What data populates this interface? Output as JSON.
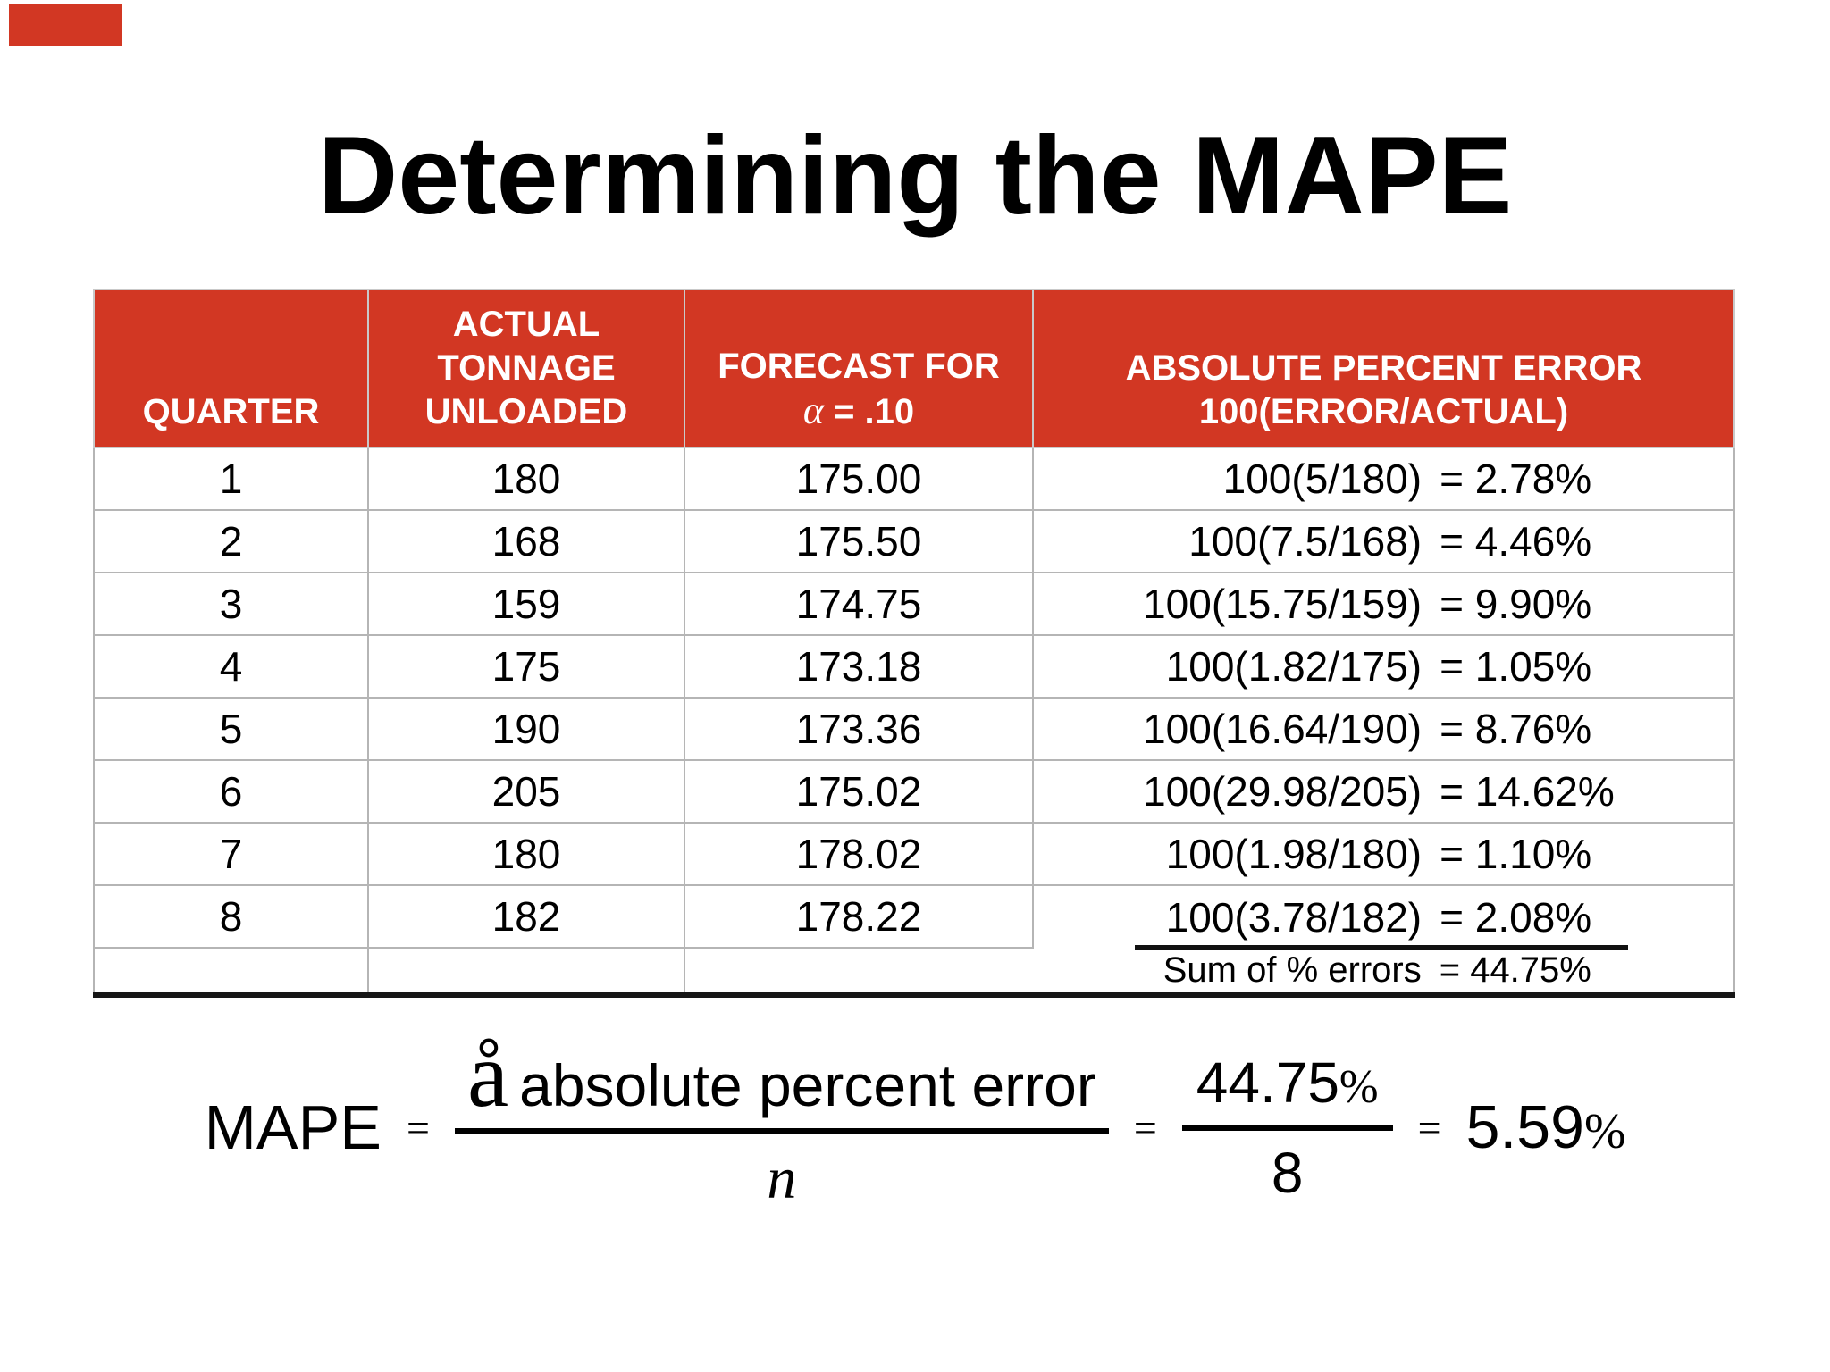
{
  "colors": {
    "accent_red": "#d23723",
    "table_border_gray": "#b5b5b5",
    "rule_black": "#161616"
  },
  "title": "Determining the MAPE",
  "table": {
    "col1_header": "QUARTER",
    "col2_header_lines": [
      "ACTUAL",
      "TONNAGE",
      "UNLOADED"
    ],
    "col3_header_line1": "FORECAST FOR",
    "col3_alpha": "α",
    "col3_header_line2_rest": "= .10",
    "col4_header_lines": [
      "ABSOLUTE PERCENT ERROR",
      "100(ERROR/ACTUAL)"
    ],
    "rows": [
      {
        "quarter": "1",
        "actual": "180",
        "forecast": "175.00",
        "ape_expr": "100(5/180)",
        "ape_value": "= 2.78%"
      },
      {
        "quarter": "2",
        "actual": "168",
        "forecast": "175.50",
        "ape_expr": "100(7.5/168)",
        "ape_value": "= 4.46%"
      },
      {
        "quarter": "3",
        "actual": "159",
        "forecast": "174.75",
        "ape_expr": "100(15.75/159)",
        "ape_value": "= 9.90%"
      },
      {
        "quarter": "4",
        "actual": "175",
        "forecast": "173.18",
        "ape_expr": "100(1.82/175)",
        "ape_value": "= 1.05%"
      },
      {
        "quarter": "5",
        "actual": "190",
        "forecast": "173.36",
        "ape_expr": "100(16.64/190)",
        "ape_value": "= 8.76%"
      },
      {
        "quarter": "6",
        "actual": "205",
        "forecast": "175.02",
        "ape_expr": "100(29.98/205)",
        "ape_value": "= 14.62%"
      },
      {
        "quarter": "7",
        "actual": "180",
        "forecast": "178.02",
        "ape_expr": "100(1.98/180)",
        "ape_value": "= 1.10%"
      },
      {
        "quarter": "8",
        "actual": "182",
        "forecast": "178.22",
        "ape_expr": "100(3.78/182)",
        "ape_value": "= 2.08%"
      }
    ],
    "sum_label": "Sum of % errors",
    "sum_value": "= 44.75%"
  },
  "formula": {
    "lhs": "MAPE",
    "equals": "=",
    "sigma": "å",
    "numerator_text": "absolute percent error",
    "denominator": "n",
    "result1_number": "44.75",
    "result1_denominator": "8",
    "result2_number": "5.59",
    "percent": "%"
  }
}
